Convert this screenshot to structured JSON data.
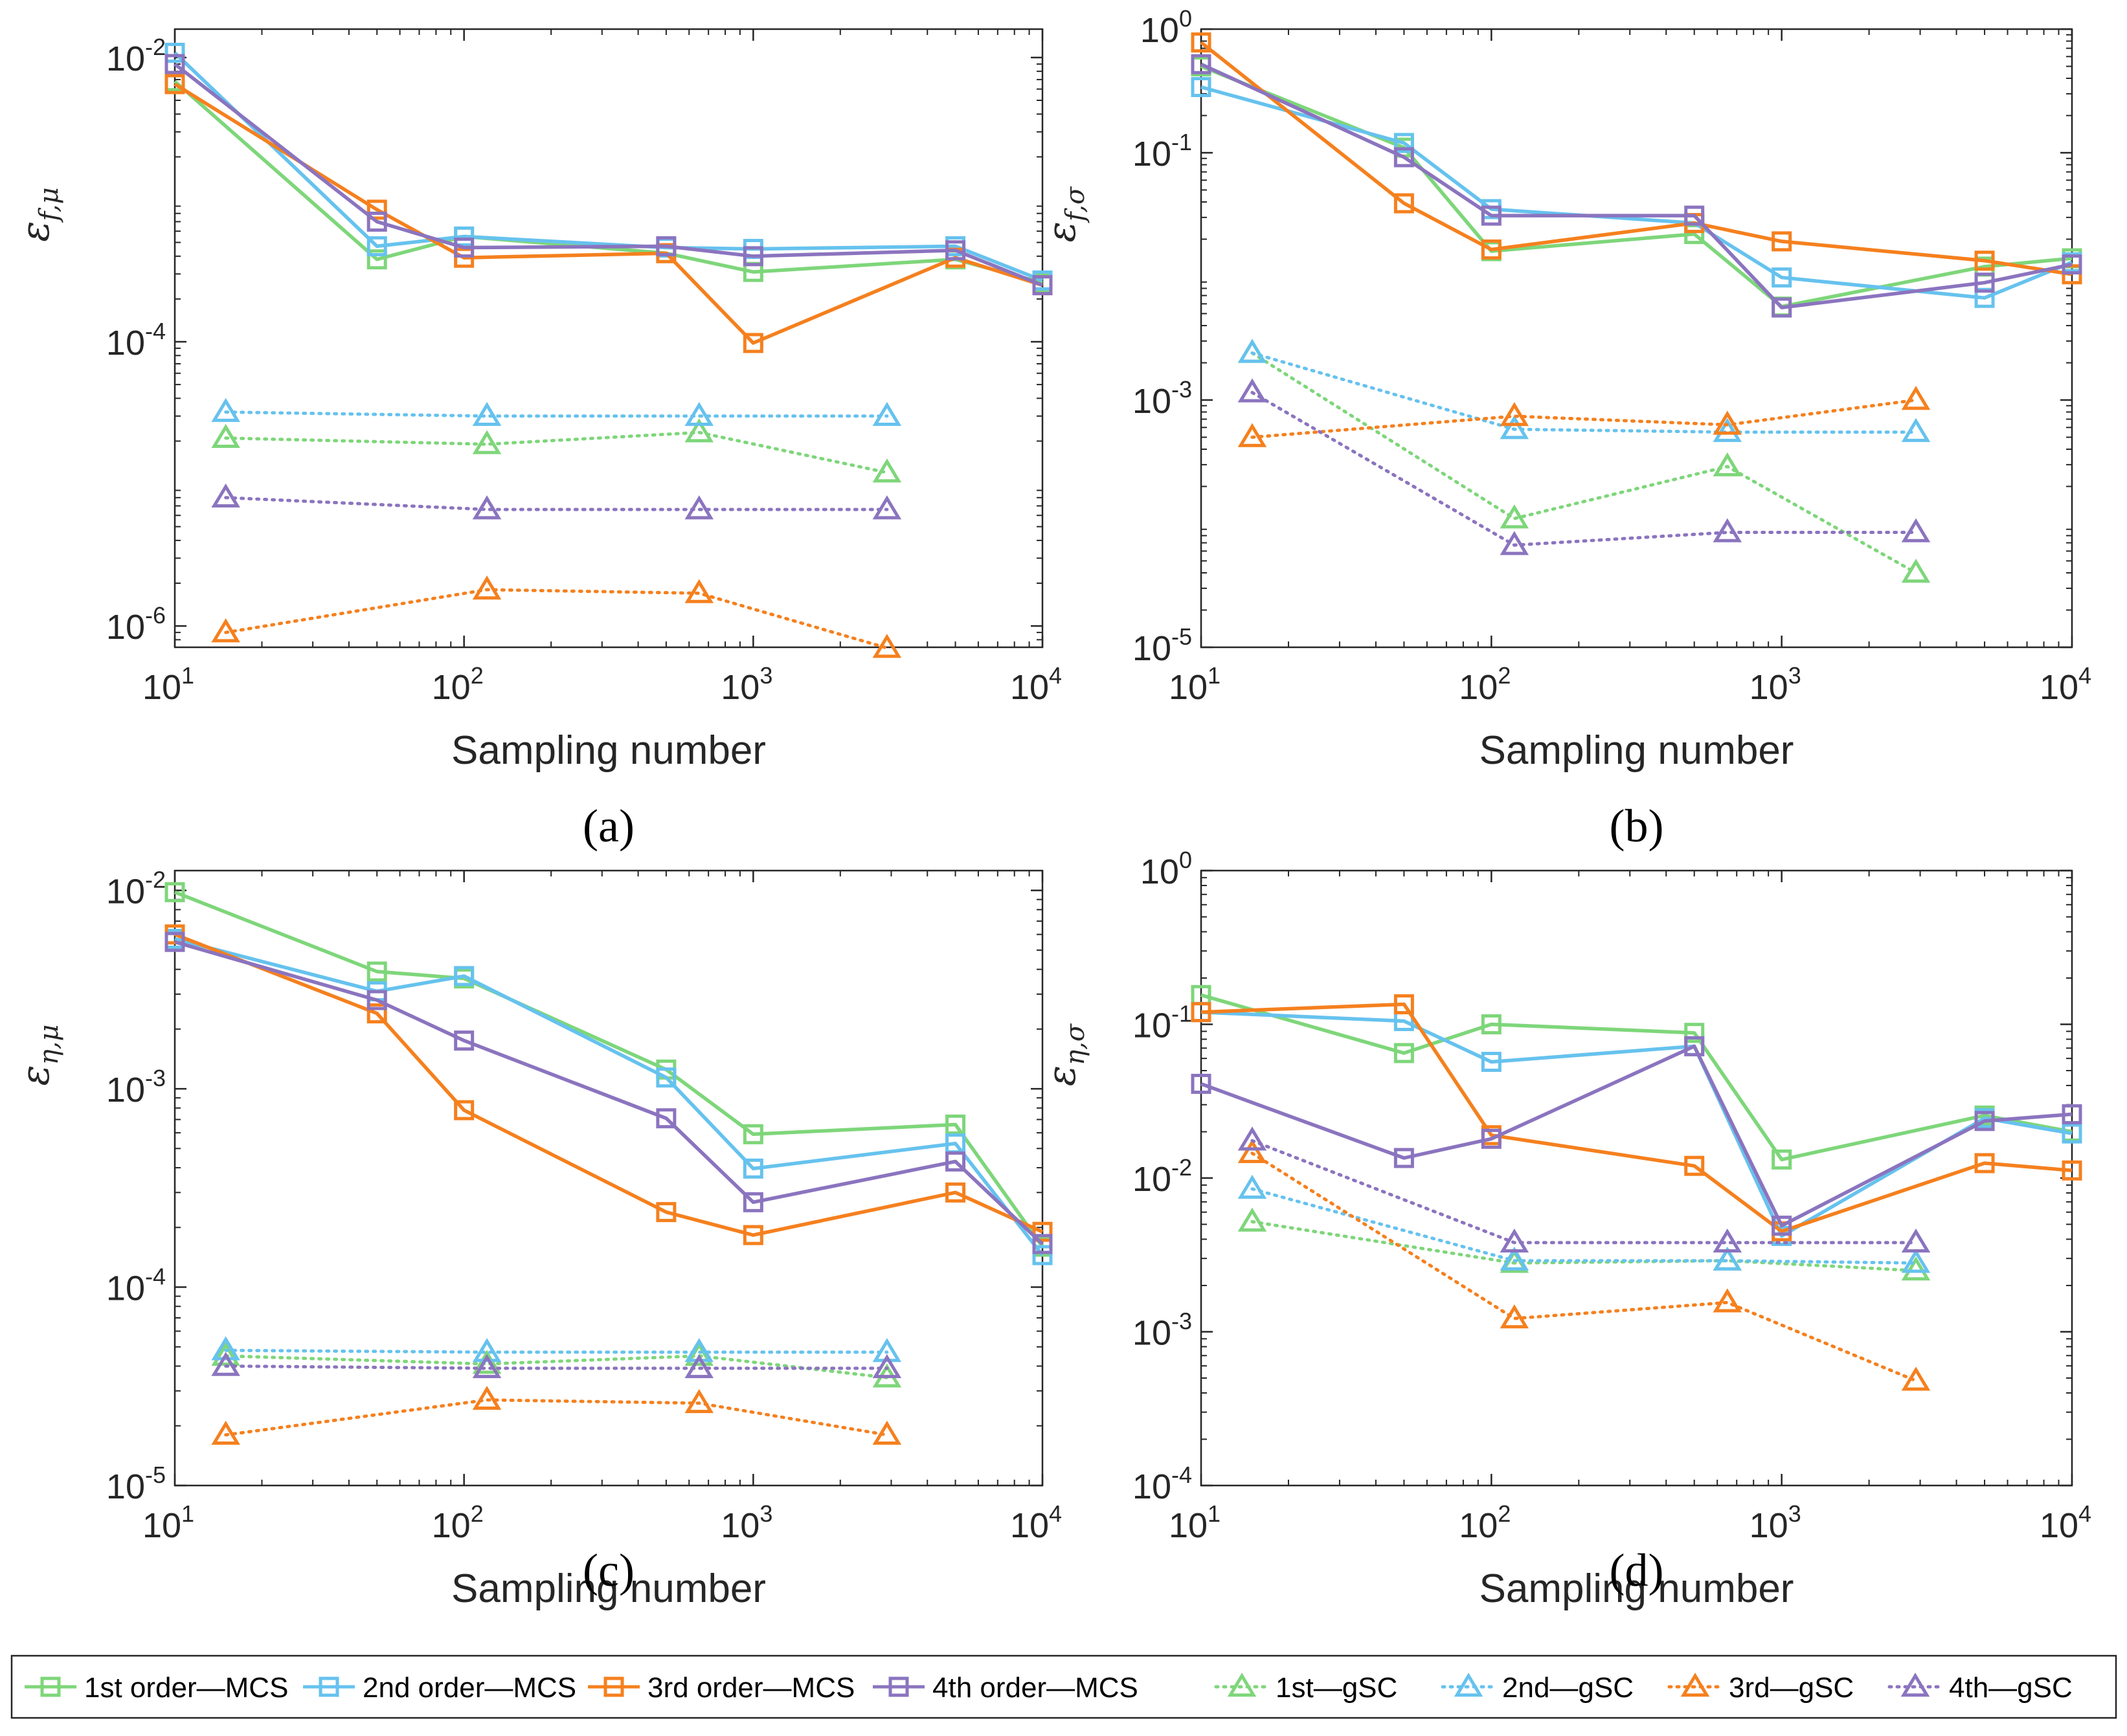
{
  "figure": {
    "legend": [
      {
        "label": "1st order—MCS",
        "color": "#7ed67a",
        "marker": "square",
        "dash": "solid"
      },
      {
        "label": "2nd order—MCS",
        "color": "#66c2ee",
        "marker": "square",
        "dash": "solid"
      },
      {
        "label": "3rd order—MCS",
        "color": "#f5801e",
        "marker": "square",
        "dash": "solid"
      },
      {
        "label": "4th order—MCS",
        "color": "#8b74bf",
        "marker": "square",
        "dash": "solid"
      },
      {
        "label": "1st—gSC",
        "color": "#7ed67a",
        "marker": "triangle",
        "dash": "dotted"
      },
      {
        "label": "2nd—gSC",
        "color": "#66c2ee",
        "marker": "triangle",
        "dash": "dotted"
      },
      {
        "label": "3rd—gSC",
        "color": "#f5801e",
        "marker": "triangle",
        "dash": "dotted"
      },
      {
        "label": "4th—gSC",
        "color": "#8b74bf",
        "marker": "triangle",
        "dash": "dotted"
      }
    ]
  },
  "chart_data": [
    {
      "type": "line",
      "caption": "(a)",
      "xlabel": "Sampling number",
      "ylabel": {
        "base": "ε",
        "sub": "f,μ"
      },
      "xscale": "log",
      "yscale": "log",
      "xlim": [
        10,
        10000
      ],
      "ylim_exp": [
        -6.15,
        -1.8
      ],
      "xticks": [
        {
          "base": "10",
          "exp": "1"
        },
        {
          "base": "10",
          "exp": "2"
        },
        {
          "base": "10",
          "exp": "3"
        },
        {
          "base": "10",
          "exp": "4"
        }
      ],
      "yticks": [
        {
          "exp_value": -2,
          "base": "10",
          "exp": "-2"
        },
        {
          "exp_value": -4,
          "base": "10",
          "exp": "-4"
        },
        {
          "exp_value": -6,
          "base": "10",
          "exp": "-6"
        }
      ],
      "series": [
        {
          "name": "1st order—MCS",
          "x": [
            10,
            50,
            100,
            500,
            1000,
            5000,
            10000
          ],
          "y": [
            0.0068,
            0.00038,
            0.00055,
            0.00042,
            0.00031,
            0.00038,
            0.00026
          ]
        },
        {
          "name": "2nd order—MCS",
          "x": [
            10,
            50,
            100,
            500,
            1000,
            5000,
            10000
          ],
          "y": [
            0.0108,
            0.00047,
            0.00055,
            0.00046,
            0.00045,
            0.00047,
            0.00027
          ]
        },
        {
          "name": "3rd order—MCS",
          "x": [
            10,
            50,
            100,
            500,
            1000,
            5000,
            10000
          ],
          "y": [
            0.0065,
            0.00085,
            0.00039,
            0.00042,
            9.8e-05,
            0.00039,
            0.00025
          ]
        },
        {
          "name": "4th order—MCS",
          "x": [
            10,
            50,
            100,
            500,
            1000,
            5000,
            10000
          ],
          "y": [
            0.009,
            0.0007,
            0.00046,
            0.00047,
            0.0004,
            0.00044,
            0.00025
          ]
        },
        {
          "name": "1st—gSC",
          "x": [
            15,
            120,
            650,
            2900
          ],
          "y": [
            2.1e-05,
            1.9e-05,
            2.3e-05,
            1.2e-05
          ]
        },
        {
          "name": "2nd—gSC",
          "x": [
            15,
            120,
            650,
            2900
          ],
          "y": [
            3.2e-05,
            3e-05,
            3e-05,
            3e-05
          ]
        },
        {
          "name": "3rd—gSC",
          "x": [
            15,
            120,
            650,
            2900
          ],
          "y": [
            9e-07,
            1.8e-06,
            1.7e-06,
            7e-07
          ]
        },
        {
          "name": "4th—gSC",
          "x": [
            15,
            120,
            650,
            2900
          ],
          "y": [
            8e-06,
            6.6e-06,
            6.6e-06,
            6.6e-06
          ]
        }
      ]
    },
    {
      "type": "line",
      "caption": "(b)",
      "xlabel": "Sampling number",
      "ylabel": {
        "base": "ε",
        "sub": "f,σ"
      },
      "xscale": "log",
      "yscale": "log",
      "xlim": [
        10,
        10000
      ],
      "ylim_exp": [
        -5,
        0
      ],
      "xticks": [
        {
          "base": "10",
          "exp": "1"
        },
        {
          "base": "10",
          "exp": "2"
        },
        {
          "base": "10",
          "exp": "3"
        },
        {
          "base": "10",
          "exp": "4"
        }
      ],
      "yticks": [
        {
          "exp_value": 0,
          "base": "10",
          "exp": "0",
          "plain": "1"
        },
        {
          "exp_value": -1,
          "base": "10",
          "exp": "-1",
          "plain": "0.1"
        },
        {
          "exp_value": -3,
          "base": "10",
          "exp": "-3"
        },
        {
          "exp_value": -5,
          "base": "10",
          "exp": "-5"
        }
      ],
      "series": [
        {
          "name": "1st order—MCS",
          "x": [
            10,
            50,
            100,
            500,
            1000,
            5000,
            10000
          ],
          "y": [
            0.5,
            0.11,
            0.016,
            0.022,
            0.0057,
            0.012,
            0.014
          ]
        },
        {
          "name": "2nd order—MCS",
          "x": [
            10,
            50,
            100,
            500,
            1000,
            5000,
            10000
          ],
          "y": [
            0.34,
            0.12,
            0.035,
            0.027,
            0.0098,
            0.0067,
            0.013
          ]
        },
        {
          "name": "3rd order—MCS",
          "x": [
            10,
            50,
            100,
            500,
            1000,
            5000,
            10000
          ],
          "y": [
            0.78,
            0.039,
            0.0165,
            0.027,
            0.0192,
            0.0134,
            0.0104
          ]
        },
        {
          "name": "4th order—MCS",
          "x": [
            10,
            50,
            100,
            500,
            1000,
            5000,
            10000
          ],
          "y": [
            0.52,
            0.092,
            0.031,
            0.031,
            0.0056,
            0.0089,
            0.0125
          ]
        },
        {
          "name": "1st—gSC",
          "x": [
            15,
            120,
            650,
            2900
          ],
          "y": [
            0.0024,
            0.00011,
            0.00029,
            4e-05
          ]
        },
        {
          "name": "2nd—gSC",
          "x": [
            15,
            120,
            650,
            2900
          ],
          "y": [
            0.0024,
            0.00058,
            0.00055,
            0.00055
          ]
        },
        {
          "name": "3rd—gSC",
          "x": [
            15,
            120,
            650,
            2900
          ],
          "y": [
            0.0005,
            0.00074,
            0.00063,
            0.001
          ]
        },
        {
          "name": "4th—gSC",
          "x": [
            15,
            120,
            650,
            2900
          ],
          "y": [
            0.00115,
            6.7e-05,
            8.5e-05,
            8.5e-05
          ]
        }
      ]
    },
    {
      "type": "line",
      "caption": "(c)",
      "xlabel": "Sampling number",
      "ylabel": {
        "base": "ε",
        "sub": "η,μ"
      },
      "xscale": "log",
      "yscale": "log",
      "xlim": [
        10,
        10000
      ],
      "ylim_exp": [
        -5,
        -1.9
      ],
      "xticks": [
        {
          "base": "10",
          "exp": "1"
        },
        {
          "base": "10",
          "exp": "2"
        },
        {
          "base": "10",
          "exp": "3"
        },
        {
          "base": "10",
          "exp": "4"
        }
      ],
      "yticks": [
        {
          "exp_value": -2,
          "base": "10",
          "exp": "-2"
        },
        {
          "exp_value": -3,
          "base": "10",
          "exp": "-3"
        },
        {
          "exp_value": -4,
          "base": "10",
          "exp": "-4"
        },
        {
          "exp_value": -5,
          "base": "10",
          "exp": "-5"
        }
      ],
      "series": [
        {
          "name": "1st order—MCS",
          "x": [
            10,
            50,
            100,
            500,
            1000,
            5000,
            10000
          ],
          "y": [
            0.0098,
            0.0039,
            0.0036,
            0.00125,
            0.00059,
            0.00066,
            0.00016
          ]
        },
        {
          "name": "2nd order—MCS",
          "x": [
            10,
            50,
            100,
            500,
            1000,
            5000,
            10000
          ],
          "y": [
            0.0057,
            0.0031,
            0.0037,
            0.00114,
            0.000396,
            0.00053,
            0.000145
          ]
        },
        {
          "name": "3rd order—MCS",
          "x": [
            10,
            50,
            100,
            500,
            1000,
            5000,
            10000
          ],
          "y": [
            0.006,
            0.0024,
            0.00078,
            0.000239,
            0.000183,
            0.0003,
            0.00019
          ]
        },
        {
          "name": "4th order—MCS",
          "x": [
            10,
            50,
            100,
            500,
            1000,
            5000,
            10000
          ],
          "y": [
            0.0055,
            0.0028,
            0.00175,
            0.00071,
            0.000268,
            0.00043,
            0.000165
          ]
        },
        {
          "name": "1st—gSC",
          "x": [
            15,
            120,
            650,
            2900
          ],
          "y": [
            4.5e-05,
            4.1e-05,
            4.5e-05,
            3.5e-05
          ]
        },
        {
          "name": "2nd—gSC",
          "x": [
            15,
            120,
            650,
            2900
          ],
          "y": [
            4.8e-05,
            4.7e-05,
            4.7e-05,
            4.7e-05
          ]
        },
        {
          "name": "3rd—gSC",
          "x": [
            15,
            120,
            650,
            2900
          ],
          "y": [
            1.8e-05,
            2.7e-05,
            2.6e-05,
            1.8e-05
          ]
        },
        {
          "name": "4th—gSC",
          "x": [
            15,
            120,
            650,
            2900
          ],
          "y": [
            4e-05,
            3.9e-05,
            3.9e-05,
            3.9e-05
          ]
        }
      ]
    },
    {
      "type": "line",
      "caption": "(d)",
      "xlabel": "Sampling number",
      "ylabel": {
        "base": "ε",
        "sub": "η,σ"
      },
      "xscale": "log",
      "yscale": "log",
      "xlim": [
        10,
        10000
      ],
      "ylim_exp": [
        -4,
        0
      ],
      "xticks": [
        {
          "base": "10",
          "exp": "1"
        },
        {
          "base": "10",
          "exp": "2"
        },
        {
          "base": "10",
          "exp": "3"
        },
        {
          "base": "10",
          "exp": "4"
        }
      ],
      "yticks": [
        {
          "exp_value": 0,
          "base": "10",
          "exp": "0",
          "plain": "1"
        },
        {
          "exp_value": -1,
          "base": "10",
          "exp": "-1",
          "plain": "0.1"
        },
        {
          "exp_value": -2,
          "base": "10",
          "exp": "-2"
        },
        {
          "exp_value": -3,
          "base": "10",
          "exp": "-3"
        },
        {
          "exp_value": -4,
          "base": "10",
          "exp": "-4"
        }
      ],
      "series": [
        {
          "name": "1st order—MCS",
          "x": [
            10,
            50,
            100,
            500,
            1000,
            5000,
            10000
          ],
          "y": [
            0.155,
            0.065,
            0.1,
            0.088,
            0.0132,
            0.0255,
            0.02
          ]
        },
        {
          "name": "2nd order—MCS",
          "x": [
            10,
            50,
            100,
            500,
            1000,
            5000,
            10000
          ],
          "y": [
            0.12,
            0.105,
            0.057,
            0.072,
            0.0042,
            0.0245,
            0.0195
          ]
        },
        {
          "name": "3rd order—MCS",
          "x": [
            10,
            50,
            100,
            500,
            1000,
            5000,
            10000
          ],
          "y": [
            0.12,
            0.135,
            0.019,
            0.012,
            0.0045,
            0.0125,
            0.0112
          ]
        },
        {
          "name": "4th order—MCS",
          "x": [
            10,
            50,
            100,
            500,
            1000,
            5000,
            10000
          ],
          "y": [
            0.041,
            0.0135,
            0.018,
            0.072,
            0.0049,
            0.0235,
            0.026
          ]
        },
        {
          "name": "1st—gSC",
          "x": [
            15,
            120,
            650,
            2900
          ],
          "y": [
            0.0052,
            0.0028,
            0.0029,
            0.0025
          ]
        },
        {
          "name": "2nd—gSC",
          "x": [
            15,
            120,
            650,
            2900
          ],
          "y": [
            0.0085,
            0.0029,
            0.0029,
            0.0028
          ]
        },
        {
          "name": "3rd—gSC",
          "x": [
            15,
            120,
            650,
            2900
          ],
          "y": [
            0.0145,
            0.00122,
            0.00155,
            0.00048
          ]
        },
        {
          "name": "4th—gSC",
          "x": [
            15,
            120,
            650,
            2900
          ],
          "y": [
            0.0175,
            0.0038,
            0.0038,
            0.0038
          ]
        }
      ]
    }
  ]
}
